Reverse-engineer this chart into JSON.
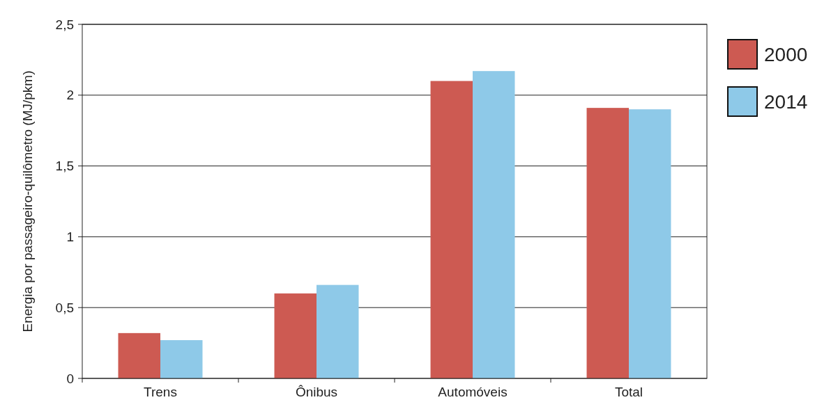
{
  "chart_data": {
    "type": "bar",
    "ylabel": "Energia por passageiro-quilômetro (MJ/pkm)",
    "categories": [
      "Trens",
      "Ônibus",
      "Automóveis",
      "Total"
    ],
    "series": [
      {
        "name": "2000",
        "color": "#cd5a52",
        "values": [
          0.32,
          0.6,
          2.1,
          1.91
        ]
      },
      {
        "name": "2014",
        "color": "#8ec9e8",
        "values": [
          0.27,
          0.66,
          2.17,
          1.9
        ]
      }
    ],
    "ylim": [
      0,
      2.5
    ],
    "yticks": [
      0,
      {
        "value": 0.5,
        "label": "0,5"
      },
      1,
      {
        "value": 1.5,
        "label": "1,5"
      },
      2,
      {
        "value": 2.5,
        "label": "2,5"
      }
    ],
    "grid": "y",
    "legend": "top right"
  }
}
